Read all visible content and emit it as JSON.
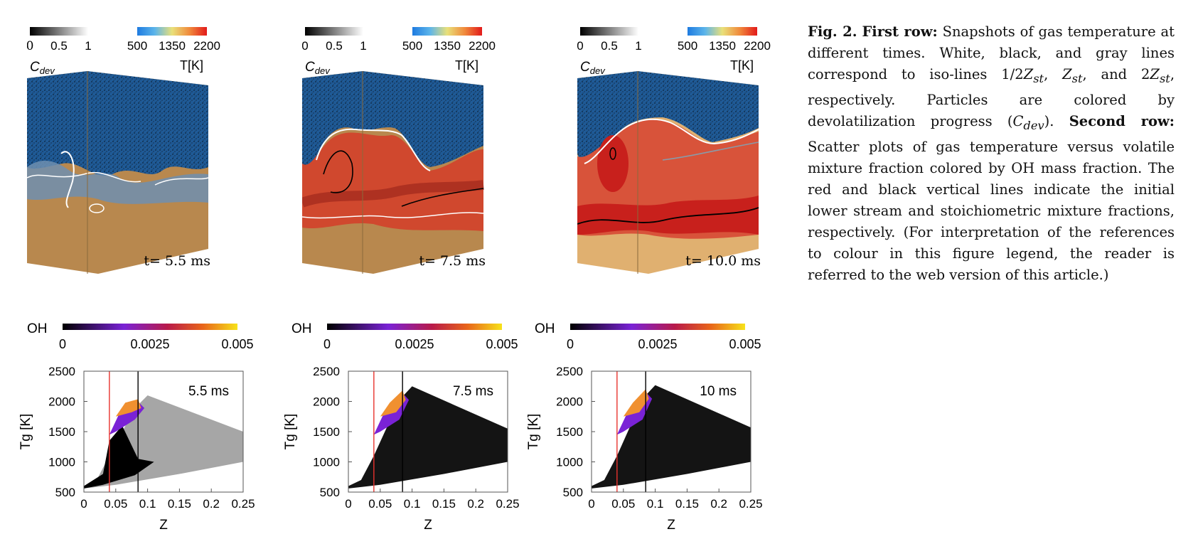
{
  "figure": {
    "snapshots": [
      {
        "time_label": "t= 5.5 ms",
        "cdev_ticks": [
          "0",
          "0.5",
          "1"
        ],
        "temp_ticks": [
          "500",
          "1350",
          "2200"
        ],
        "cdev_label": "C",
        "cdev_sub": "dev",
        "temp_label": "T[K]"
      },
      {
        "time_label": "t= 7.5 ms",
        "cdev_ticks": [
          "0",
          "0.5",
          "1"
        ],
        "temp_ticks": [
          "500",
          "1350",
          "2200"
        ],
        "cdev_label": "C",
        "cdev_sub": "dev",
        "temp_label": "T[K]"
      },
      {
        "time_label": "t= 10.0 ms",
        "cdev_ticks": [
          "0",
          "0.5",
          "1"
        ],
        "temp_ticks": [
          "500",
          "1350",
          "2200"
        ],
        "cdev_label": "C",
        "cdev_sub": "dev",
        "temp_label": "T[K]"
      }
    ],
    "scatter_colorbar": {
      "label": "OH",
      "ticks": [
        "0",
        "0.0025",
        "0.005"
      ]
    },
    "colors": {
      "stoich_line": "#000000",
      "lower_stream_line": "#e8332e",
      "low_temp": "#2f6fb3",
      "high_temp": "#c8201c",
      "oxidizer_zone": "#b8884e"
    }
  },
  "chart_data": [
    {
      "type": "scatter",
      "annotation": "5.5 ms",
      "xlabel": "Z",
      "ylabel": "Tg [K]",
      "xlim": [
        0,
        0.25
      ],
      "ylim": [
        500,
        2500
      ],
      "x_ticks": [
        "0",
        "0.05",
        "0.1",
        "0.15",
        "0.2",
        "0.25"
      ],
      "y_ticks": [
        "500",
        "1000",
        "1500",
        "2000",
        "2500"
      ],
      "vertical_lines": [
        {
          "color": "red",
          "x": 0.04
        },
        {
          "color": "black",
          "x": 0.085
        }
      ],
      "envelope_max_T": 2100
    },
    {
      "type": "scatter",
      "annotation": "7.5 ms",
      "xlabel": "Z",
      "ylabel": "Tg [K]",
      "xlim": [
        0,
        0.25
      ],
      "ylim": [
        500,
        2500
      ],
      "x_ticks": [
        "0",
        "0.05",
        "0.1",
        "0.15",
        "0.2",
        "0.25"
      ],
      "y_ticks": [
        "500",
        "1000",
        "1500",
        "2000",
        "2500"
      ],
      "vertical_lines": [
        {
          "color": "red",
          "x": 0.04
        },
        {
          "color": "black",
          "x": 0.085
        }
      ],
      "envelope_max_T": 2250
    },
    {
      "type": "scatter",
      "annotation": "10 ms",
      "xlabel": "Z",
      "ylabel": "Tg [K]",
      "xlim": [
        0,
        0.25
      ],
      "ylim": [
        500,
        2500
      ],
      "x_ticks": [
        "0",
        "0.05",
        "0.1",
        "0.15",
        "0.2",
        "0.25"
      ],
      "y_ticks": [
        "500",
        "1000",
        "1500",
        "2000",
        "2500"
      ],
      "vertical_lines": [
        {
          "color": "red",
          "x": 0.04
        },
        {
          "color": "black",
          "x": 0.085
        }
      ],
      "envelope_max_T": 2270
    }
  ],
  "caption": {
    "fig_label": "Fig. 2.",
    "row1_label": "First row:",
    "row1_a": " Snapshots of gas temperature at different times. White, black, and gray lines correspond to iso-lines 1/2",
    "z1": "Z",
    "z1_sub": "st",
    "row1_b": ", ",
    "z2": "Z",
    "z2_sub": "st",
    "row1_c": ", and 2",
    "z3": "Z",
    "z3_sub": "st",
    "row1_d": ", respectively. Particles are colored by devolatilization progress (",
    "cdev": "C",
    "cdev_sub": "dev",
    "row1_e": "). ",
    "row2_label": "Second row:",
    "row2_text": " Scatter plots of gas temperature versus volatile mixture fraction colored by OH mass fraction. The red and black vertical lines indicate the initial lower stream and stoichiometric mixture fractions, respectively. (For interpretation of the references to colour in this figure legend, the reader is referred to the web version of this article.)"
  }
}
